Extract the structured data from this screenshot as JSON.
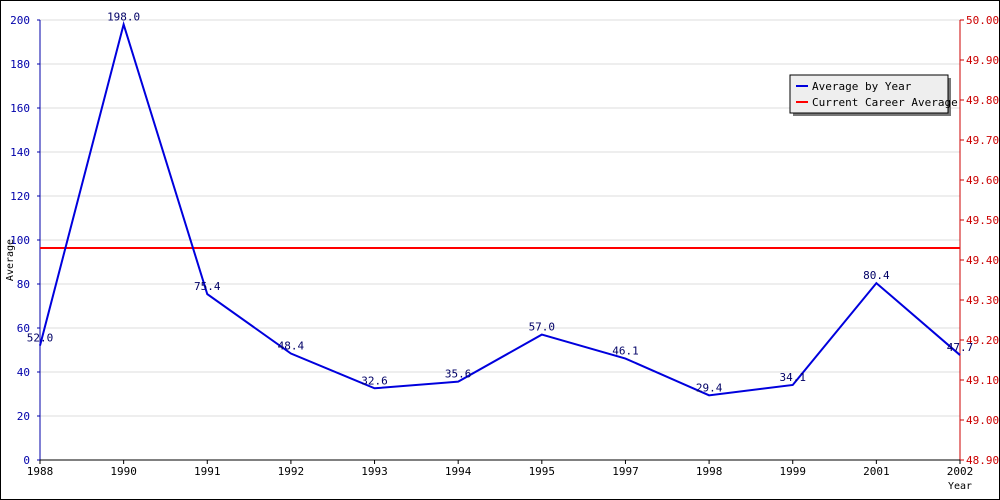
{
  "chart_data": {
    "type": "line",
    "title": "",
    "xlabel": "Year",
    "ylabel": "Average",
    "categories": [
      "1988",
      "1990",
      "1991",
      "1992",
      "1993",
      "1994",
      "1995",
      "1997",
      "1998",
      "1999",
      "2001",
      "2002"
    ],
    "series": [
      {
        "name": "Average by Year",
        "color": "#0000dd",
        "axis": "left",
        "values": [
          52.0,
          198.0,
          75.4,
          48.4,
          32.6,
          35.6,
          57.0,
          46.1,
          29.4,
          34.1,
          80.4,
          47.7
        ],
        "labels": [
          "52.0",
          "198.0",
          "75.4",
          "48.4",
          "32.6",
          "35.6",
          "57.0",
          "46.1",
          "29.4",
          "34.1",
          "80.4",
          "47.7"
        ]
      },
      {
        "name": "Current Career Average",
        "color": "#ff0000",
        "axis": "right",
        "value": 49.43
      }
    ],
    "y_left": {
      "ylim": [
        0,
        200
      ],
      "ticks": [
        "0",
        "20",
        "40",
        "60",
        "80",
        "100",
        "120",
        "140",
        "160",
        "180",
        "200"
      ],
      "color": "#0000aa"
    },
    "y_right": {
      "ylim": [
        48.9,
        50.0
      ],
      "ticks": [
        "48.90",
        "49.00",
        "49.10",
        "49.20",
        "49.30",
        "49.40",
        "49.50",
        "49.60",
        "49.70",
        "49.80",
        "49.90",
        "50.00"
      ],
      "color": "#cc0000"
    },
    "grid": true,
    "legend_position": "top-right"
  }
}
